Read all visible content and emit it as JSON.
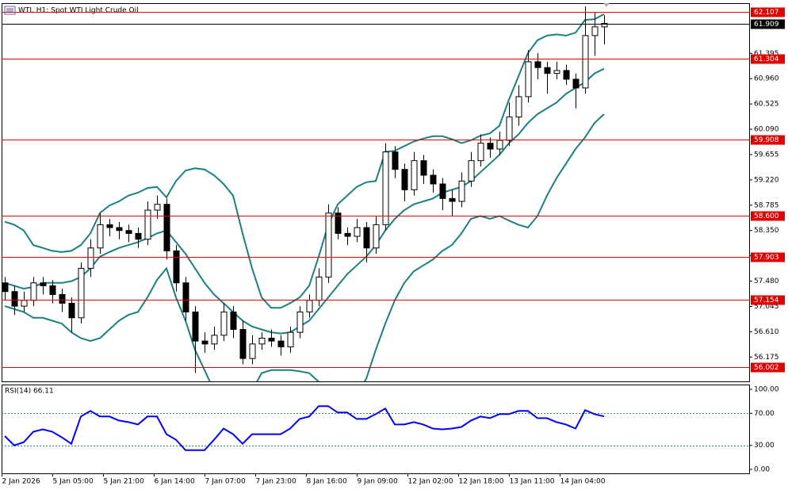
{
  "chart_data": [
    {
      "type": "candlestick",
      "title": "WTI, H1:  Spot WTI Light Crude Oil",
      "x": [
        0,
        3,
        6,
        9,
        12,
        15,
        18,
        21,
        24,
        27,
        30,
        33,
        36,
        39,
        42,
        45,
        48,
        51,
        54,
        57,
        60,
        63,
        66,
        69,
        72,
        75,
        78,
        81,
        84,
        87,
        90,
        93,
        96,
        99,
        102,
        105,
        108,
        111,
        114,
        117,
        120,
        123,
        126,
        129,
        132,
        135,
        138,
        141,
        144,
        147,
        150,
        153,
        156,
        159,
        162,
        165,
        168,
        171,
        174,
        177,
        180,
        183,
        186,
        189
      ],
      "open": [
        57.45,
        57.3,
        57.05,
        57.15,
        57.45,
        57.4,
        57.25,
        57.1,
        56.85,
        57.7,
        58.05,
        58.45,
        58.4,
        58.35,
        58.3,
        58.2,
        58.7,
        58.8,
        58.0,
        57.45,
        56.95,
        56.45,
        56.4,
        56.55,
        56.95,
        56.65,
        56.15,
        56.4,
        56.5,
        56.45,
        56.35,
        56.6,
        56.95,
        57.15,
        57.55,
        58.65,
        58.3,
        58.25,
        58.4,
        58.05,
        58.45,
        59.7,
        59.4,
        59.05,
        59.55,
        59.3,
        59.15,
        58.9,
        58.85,
        59.2,
        59.55,
        59.85,
        59.75,
        59.9,
        60.3,
        60.65,
        61.25,
        61.15,
        61.05,
        61.1,
        60.95,
        60.8,
        61.7,
        61.85
      ],
      "high": [
        57.55,
        57.4,
        57.3,
        57.55,
        57.55,
        57.5,
        57.35,
        57.2,
        57.8,
        58.2,
        58.65,
        58.55,
        58.5,
        58.45,
        58.4,
        58.85,
        58.95,
        58.9,
        58.1,
        57.55,
        57.05,
        56.6,
        56.7,
        57.1,
        57.05,
        56.8,
        56.55,
        56.6,
        56.65,
        56.55,
        56.7,
        57.05,
        57.25,
        57.7,
        58.8,
        58.75,
        58.4,
        58.55,
        58.5,
        58.6,
        59.85,
        59.8,
        59.5,
        59.7,
        59.65,
        59.4,
        59.25,
        59.05,
        59.35,
        59.7,
        60.0,
        59.95,
        60.05,
        60.55,
        60.85,
        61.45,
        61.4,
        61.25,
        61.25,
        61.2,
        61.05,
        62.2,
        62.1,
        62.05
      ],
      "low": [
        57.15,
        56.9,
        56.95,
        57.05,
        57.25,
        57.1,
        56.95,
        56.6,
        56.75,
        57.55,
        57.95,
        58.25,
        58.2,
        58.15,
        58.05,
        58.1,
        58.55,
        57.85,
        57.3,
        56.8,
        55.9,
        56.25,
        56.3,
        56.45,
        56.5,
        56.05,
        56.05,
        56.3,
        56.35,
        56.2,
        56.25,
        56.5,
        56.85,
        57.05,
        57.45,
        58.2,
        58.1,
        58.15,
        57.8,
        57.95,
        58.35,
        59.25,
        58.85,
        58.95,
        59.15,
        59.0,
        58.7,
        58.6,
        58.75,
        59.1,
        59.45,
        59.6,
        59.65,
        59.8,
        60.15,
        60.55,
        60.95,
        60.7,
        60.95,
        60.85,
        60.45,
        60.7,
        61.35,
        61.55
      ],
      "close": [
        57.3,
        57.05,
        57.15,
        57.45,
        57.4,
        57.25,
        57.1,
        56.85,
        57.7,
        58.05,
        58.45,
        58.4,
        58.35,
        58.3,
        58.2,
        58.7,
        58.8,
        58.0,
        57.45,
        56.95,
        56.45,
        56.4,
        56.55,
        56.95,
        56.65,
        56.15,
        56.4,
        56.5,
        56.45,
        56.35,
        56.6,
        56.95,
        57.15,
        57.55,
        58.65,
        58.3,
        58.25,
        58.4,
        58.05,
        58.45,
        59.7,
        59.4,
        59.05,
        59.55,
        59.3,
        59.15,
        58.9,
        58.85,
        59.2,
        59.55,
        59.85,
        59.75,
        59.9,
        60.3,
        60.65,
        61.25,
        61.15,
        61.05,
        61.1,
        60.95,
        60.8,
        61.7,
        61.85,
        61.909
      ],
      "color": "#000000",
      "bands_color": "#1a8080",
      "bands": [
        {
          "values": [
            58.5,
            58.45,
            58.35,
            58.1,
            58.05,
            58.0,
            57.98,
            58.0,
            58.1,
            58.3,
            58.65,
            58.78,
            58.85,
            58.95,
            59.0,
            59.08,
            59.1,
            58.92,
            59.2,
            59.38,
            59.42,
            59.4,
            59.3,
            59.15,
            58.95,
            58.3,
            57.7,
            57.2,
            57.02,
            57.02,
            57.1,
            57.2,
            57.4,
            57.9,
            58.45,
            58.8,
            58.95,
            59.1,
            59.18,
            59.2,
            59.7,
            59.72,
            59.8,
            59.88,
            59.93,
            59.97,
            59.97,
            59.92,
            59.85,
            59.9,
            59.98,
            60.02,
            60.15,
            60.6,
            61.0,
            61.4,
            61.62,
            61.7,
            61.72,
            61.7,
            61.75,
            61.97,
            61.98,
            62.07
          ]
        },
        {
          "values": [
            57.45,
            57.4,
            57.35,
            57.38,
            57.45,
            57.45,
            57.45,
            57.48,
            57.55,
            57.7,
            57.9,
            57.98,
            58.05,
            58.1,
            58.15,
            58.22,
            58.3,
            58.35,
            58.15,
            57.95,
            57.7,
            57.45,
            57.25,
            57.1,
            56.95,
            56.8,
            56.7,
            56.65,
            56.6,
            56.58,
            56.6,
            56.7,
            56.8,
            57.0,
            57.2,
            57.4,
            57.6,
            57.75,
            57.9,
            58.1,
            58.35,
            58.55,
            58.7,
            58.8,
            58.85,
            58.9,
            59.0,
            59.05,
            59.1,
            59.2,
            59.35,
            59.5,
            59.65,
            59.85,
            60.0,
            60.2,
            60.35,
            60.45,
            60.55,
            60.7,
            60.8,
            60.9,
            61.05,
            61.13
          ]
        },
        {
          "values": [
            57.05,
            57.0,
            56.95,
            56.85,
            56.85,
            56.8,
            56.75,
            56.6,
            56.5,
            56.45,
            56.5,
            56.65,
            56.8,
            56.9,
            56.95,
            57.2,
            57.5,
            57.7,
            57.2,
            56.8,
            56.3,
            55.95,
            55.6,
            55.4,
            55.3,
            55.4,
            55.6,
            55.9,
            55.95,
            55.95,
            55.95,
            55.93,
            55.9,
            55.75,
            55.55,
            55.4,
            55.4,
            55.55,
            55.8,
            56.3,
            56.75,
            57.15,
            57.45,
            57.65,
            57.75,
            57.85,
            58.0,
            58.1,
            58.3,
            58.55,
            58.6,
            58.55,
            58.6,
            58.52,
            58.45,
            58.4,
            58.6,
            58.95,
            59.25,
            59.5,
            59.75,
            59.95,
            60.2,
            60.35
          ]
        }
      ],
      "hlines": [
        62.107,
        61.304,
        59.908,
        {
          "value": 58.6,
          "label": "58.600"
        },
        57.903,
        57.154,
        56.002
      ],
      "hline_color": "#e00000",
      "last_price": 61.909,
      "xlim": [
        -1,
        234.75
      ],
      "ylim": [
        55.757,
        62.257
      ],
      "yticks": [
        61.395,
        {
          "value": 60.96,
          "label": "60.960"
        },
        60.525,
        {
          "value": 60.09,
          "label": "60.090"
        },
        59.655,
        {
          "value": 59.22,
          "label": "59.220"
        },
        58.785,
        {
          "value": 58.35,
          "label": "58.350"
        },
        57.915,
        {
          "value": 57.48,
          "label": "57.480"
        },
        57.045,
        {
          "value": 56.61,
          "label": "56.610"
        },
        56.175
      ],
      "xticks": [
        {
          "value": -1,
          "label": "2 Jan 2026"
        },
        {
          "value": 15,
          "label": "5 Jan 05:00"
        },
        {
          "value": 31,
          "label": "5 Jan 21:00"
        },
        {
          "value": 47,
          "label": "6 Jan 14:00"
        },
        {
          "value": 63,
          "label": "7 Jan 07:00"
        },
        {
          "value": 79,
          "label": "7 Jan 23:00"
        },
        {
          "value": 95,
          "label": "8 Jan 16:00"
        },
        {
          "value": 111,
          "label": "9 Jan 09:00"
        },
        {
          "value": 127,
          "label": "12 Jan 02:00"
        },
        {
          "value": 143,
          "label": "12 Jan 18:00"
        },
        {
          "value": 159,
          "label": "13 Jan 11:00"
        },
        {
          "value": 175,
          "label": "14 Jan 04:00"
        }
      ]
    },
    {
      "type": "line",
      "title": "RSI(14) 66.11",
      "x": [
        0,
        3,
        6,
        9,
        12,
        15,
        18,
        21,
        24,
        27,
        30,
        33,
        36,
        39,
        42,
        45,
        48,
        51,
        54,
        57,
        60,
        63,
        66,
        69,
        72,
        75,
        78,
        81,
        84,
        87,
        90,
        93,
        96,
        99,
        102,
        105,
        108,
        111,
        114,
        117,
        120,
        123,
        126,
        129,
        132,
        135,
        138,
        141,
        144,
        147,
        150,
        153,
        156,
        159,
        162,
        165,
        168,
        171,
        174,
        177,
        180,
        183,
        186,
        189
      ],
      "values": [
        41.6,
        30,
        34,
        47,
        50,
        47,
        40,
        32,
        66,
        73,
        66,
        66,
        61,
        59,
        56,
        66,
        66,
        44,
        37,
        24,
        24,
        24,
        37,
        51,
        44,
        32,
        44,
        44,
        44,
        44,
        51,
        63,
        66,
        79,
        79,
        71,
        71,
        63,
        63,
        69,
        76,
        56,
        56,
        59,
        56,
        51,
        50,
        51,
        53,
        61,
        66,
        64,
        69,
        69,
        73,
        73,
        64,
        64,
        59,
        56,
        51,
        74,
        69,
        66.11
      ],
      "color": "#0000ff",
      "levels": [
        70,
        30
      ],
      "level_color": "#2e8b57",
      "xlim": [
        -1,
        234.75
      ],
      "ylim": [
        -4.95,
        105.94
      ],
      "yticks": [
        {
          "value": 100,
          "label": "100.00"
        },
        {
          "value": 70,
          "label": "70.00"
        },
        {
          "value": 30,
          "label": "30.00"
        },
        {
          "value": 0,
          "label": "0.00"
        }
      ]
    }
  ]
}
